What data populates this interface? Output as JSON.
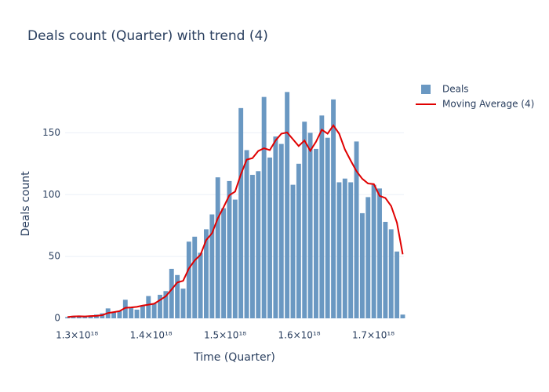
{
  "chart_data": {
    "type": "bar_line",
    "title": "Deals count (Quarter) with trend (4)",
    "x_label": "Time (Quarter)",
    "y_label": "Deals count",
    "x": [
      1.2873e+18,
      1.2951e+18,
      1.3029e+18,
      1.3107e+18,
      1.3185e+18,
      1.3263e+18,
      1.3341e+18,
      1.3419e+18,
      1.3497e+18,
      1.3575e+18,
      1.3653e+18,
      1.3731e+18,
      1.3809e+18,
      1.3887e+18,
      1.3965e+18,
      1.4043e+18,
      1.4121e+18,
      1.4199e+18,
      1.4277e+18,
      1.4355e+18,
      1.4433e+18,
      1.4511e+18,
      1.4589e+18,
      1.4667e+18,
      1.4745e+18,
      1.4823e+18,
      1.4901e+18,
      1.4979e+18,
      1.5057e+18,
      1.5135e+18,
      1.5213e+18,
      1.5291e+18,
      1.5369e+18,
      1.5447e+18,
      1.5525e+18,
      1.5603e+18,
      1.5681e+18,
      1.5759e+18,
      1.5837e+18,
      1.5915e+18,
      1.5993e+18,
      1.6071e+18,
      1.6149e+18,
      1.6227e+18,
      1.6305e+18,
      1.6383e+18,
      1.6461e+18,
      1.6539e+18,
      1.6617e+18,
      1.6695e+18,
      1.6773e+18,
      1.6851e+18,
      1.6929e+18,
      1.7007e+18,
      1.7085e+18,
      1.7163e+18,
      1.7241e+18,
      1.7319e+18,
      1.7397e+18
    ],
    "series": [
      {
        "name": "Deals",
        "kind": "bar",
        "color": "#6a98c2",
        "values": [
          1,
          2,
          2,
          1,
          2,
          3,
          4,
          8,
          5,
          6,
          15,
          9,
          7,
          10,
          18,
          12,
          19,
          22,
          40,
          35,
          24,
          62,
          66,
          53,
          72,
          84,
          114,
          89,
          111,
          96,
          170,
          136,
          116,
          119,
          179,
          130,
          147,
          141,
          183,
          108,
          125,
          159,
          150,
          137,
          164,
          146,
          177,
          110,
          113,
          110,
          143,
          85,
          98,
          108,
          105,
          78,
          72,
          54,
          3
        ]
      },
      {
        "name": "Moving Average (4)",
        "kind": "line",
        "color": "#e00000",
        "values": [
          1,
          1.5,
          1.7,
          1.5,
          1.8,
          2,
          2.5,
          4.3,
          5,
          5.8,
          8.5,
          8.8,
          9.3,
          10.3,
          11,
          11.8,
          14.8,
          17.8,
          23.3,
          29,
          30.3,
          40.3,
          46.8,
          51.3,
          63.3,
          68.8,
          80.8,
          89.8,
          99.5,
          102.5,
          116.5,
          128.3,
          129.5,
          135.3,
          137.5,
          136,
          143.8,
          149.3,
          150.3,
          144.8,
          139.3,
          143.8,
          135.5,
          142.8,
          152.5,
          149.3,
          156,
          149.3,
          136.5,
          127.5,
          119,
          112.8,
          109,
          108.5,
          99,
          97.3,
          90.8,
          77.3,
          51.8
        ]
      }
    ],
    "xlim": [
      1.284e+18,
      1.7413e+18
    ],
    "xticks": [
      {
        "value": 1.3e+18,
        "label": "1.3×10¹⁸"
      },
      {
        "value": 1.4e+18,
        "label": "1.4×10¹⁸"
      },
      {
        "value": 1.5e+18,
        "label": "1.5×10¹⁸"
      },
      {
        "value": 1.6e+18,
        "label": "1.6×10¹⁸"
      },
      {
        "value": 1.7e+18,
        "label": "1.7×10¹⁸"
      }
    ],
    "ylim": [
      0,
      194
    ],
    "yticks": [
      0,
      50,
      100,
      150
    ],
    "grid": true,
    "legend": "right"
  }
}
